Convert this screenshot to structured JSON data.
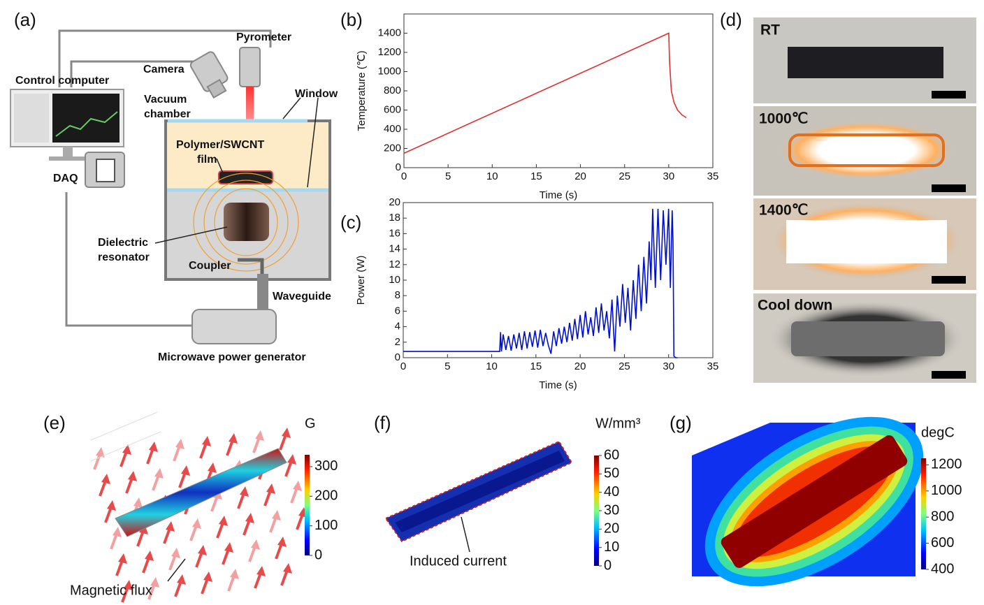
{
  "panel_labels": [
    "(a)",
    "(b)",
    "(c)",
    "(d)",
    "(e)",
    "(f)",
    "(g)"
  ],
  "setup": {
    "pyrometer": "Pyrometer",
    "camera": "Camera",
    "control_computer": "Control computer",
    "vacuum_chamber": [
      "Vacuum",
      "chamber"
    ],
    "window": "Window",
    "film": [
      "Polymer/SWCNT",
      "film"
    ],
    "daq": "DAQ",
    "resonator": [
      "Dielectric",
      "resonator"
    ],
    "coupler": "Coupler",
    "waveguide": "Waveguide",
    "generator": "Microwave power generator"
  },
  "chart_data": [
    {
      "type": "line",
      "x_label": "Time (s)",
      "y_label": "Temperature (℃)",
      "color": "#e03030",
      "x": [
        0,
        30,
        30.1,
        30.3,
        30.6,
        31,
        31.5,
        32
      ],
      "values": [
        150,
        1400,
        1100,
        800,
        680,
        600,
        550,
        520
      ],
      "xlim": [
        0,
        35
      ],
      "ylim": [
        0,
        1600
      ],
      "xticks": [
        0,
        5,
        10,
        15,
        20,
        25,
        30,
        35
      ],
      "yticks": [
        0,
        200,
        400,
        600,
        800,
        1000,
        1200,
        1400
      ]
    },
    {
      "type": "line",
      "x_label": "Time (s)",
      "y_label": "Power (W)",
      "color": "#0010c8",
      "x": [
        0,
        10.9,
        11,
        11.1,
        11.3,
        11.6,
        11.9,
        12.2,
        12.5,
        12.8,
        13.1,
        13.4,
        13.7,
        14,
        14.3,
        14.6,
        14.9,
        15.2,
        15.5,
        15.8,
        16.1,
        16.4,
        16.7,
        17,
        17.3,
        17.6,
        17.9,
        18.2,
        18.5,
        18.8,
        19.1,
        19.4,
        19.7,
        20,
        20.3,
        20.6,
        20.9,
        21.2,
        21.5,
        21.8,
        22.1,
        22.4,
        22.7,
        23,
        23.3,
        23.6,
        23.9,
        24.2,
        24.5,
        24.8,
        25.1,
        25.4,
        25.7,
        26,
        26.3,
        26.6,
        26.9,
        27.2,
        27.5,
        27.8,
        28,
        28.2,
        28.5,
        28.8,
        29.1,
        29.4,
        29.7,
        30,
        30.2,
        30.4,
        30.5,
        30.6,
        30.8,
        31
      ],
      "values": [
        0.8,
        0.8,
        3.3,
        0.8,
        3,
        1,
        2.8,
        0.9,
        3,
        1.2,
        3.2,
        1,
        3.4,
        1.2,
        3.3,
        1.4,
        3.5,
        1.3,
        3.6,
        1.5,
        3.2,
        1.6,
        0.5,
        3.4,
        1.5,
        3.8,
        1.8,
        4,
        2,
        4.5,
        2.2,
        5,
        2.4,
        5.5,
        2.6,
        6,
        3,
        5.2,
        2.8,
        6.5,
        3.2,
        7,
        3.5,
        6,
        2.5,
        7.5,
        0.8,
        8,
        4,
        9.5,
        4.5,
        9,
        3.5,
        10,
        5,
        12,
        6,
        13,
        7,
        15,
        10,
        19.2,
        9,
        19.2,
        10,
        19,
        12,
        19.2,
        9,
        19,
        15,
        0.2,
        0,
        0
      ],
      "xlim": [
        0,
        35
      ],
      "ylim": [
        0,
        20
      ],
      "xticks": [
        0,
        5,
        10,
        15,
        20,
        25,
        30,
        35
      ],
      "yticks": [
        0,
        2,
        4,
        6,
        8,
        10,
        12,
        14,
        16,
        18,
        20
      ]
    }
  ],
  "photos": [
    "RT",
    "1000℃",
    "1400℃",
    "Cool down"
  ],
  "simulations": [
    {
      "unit": "G",
      "colorbar_lim": [
        0,
        340
      ],
      "colorbar_ticks": [
        0,
        100,
        200,
        300
      ],
      "annotation": "Magnetic flux"
    },
    {
      "unit": "W/mm³",
      "colorbar_lim": [
        0,
        60
      ],
      "colorbar_ticks": [
        0,
        10,
        20,
        30,
        40,
        50,
        60
      ],
      "annotation": "Induced current"
    },
    {
      "unit": "degC",
      "colorbar_lim": [
        400,
        1250
      ],
      "colorbar_ticks": [
        400,
        600,
        800,
        1000,
        1200
      ]
    }
  ]
}
